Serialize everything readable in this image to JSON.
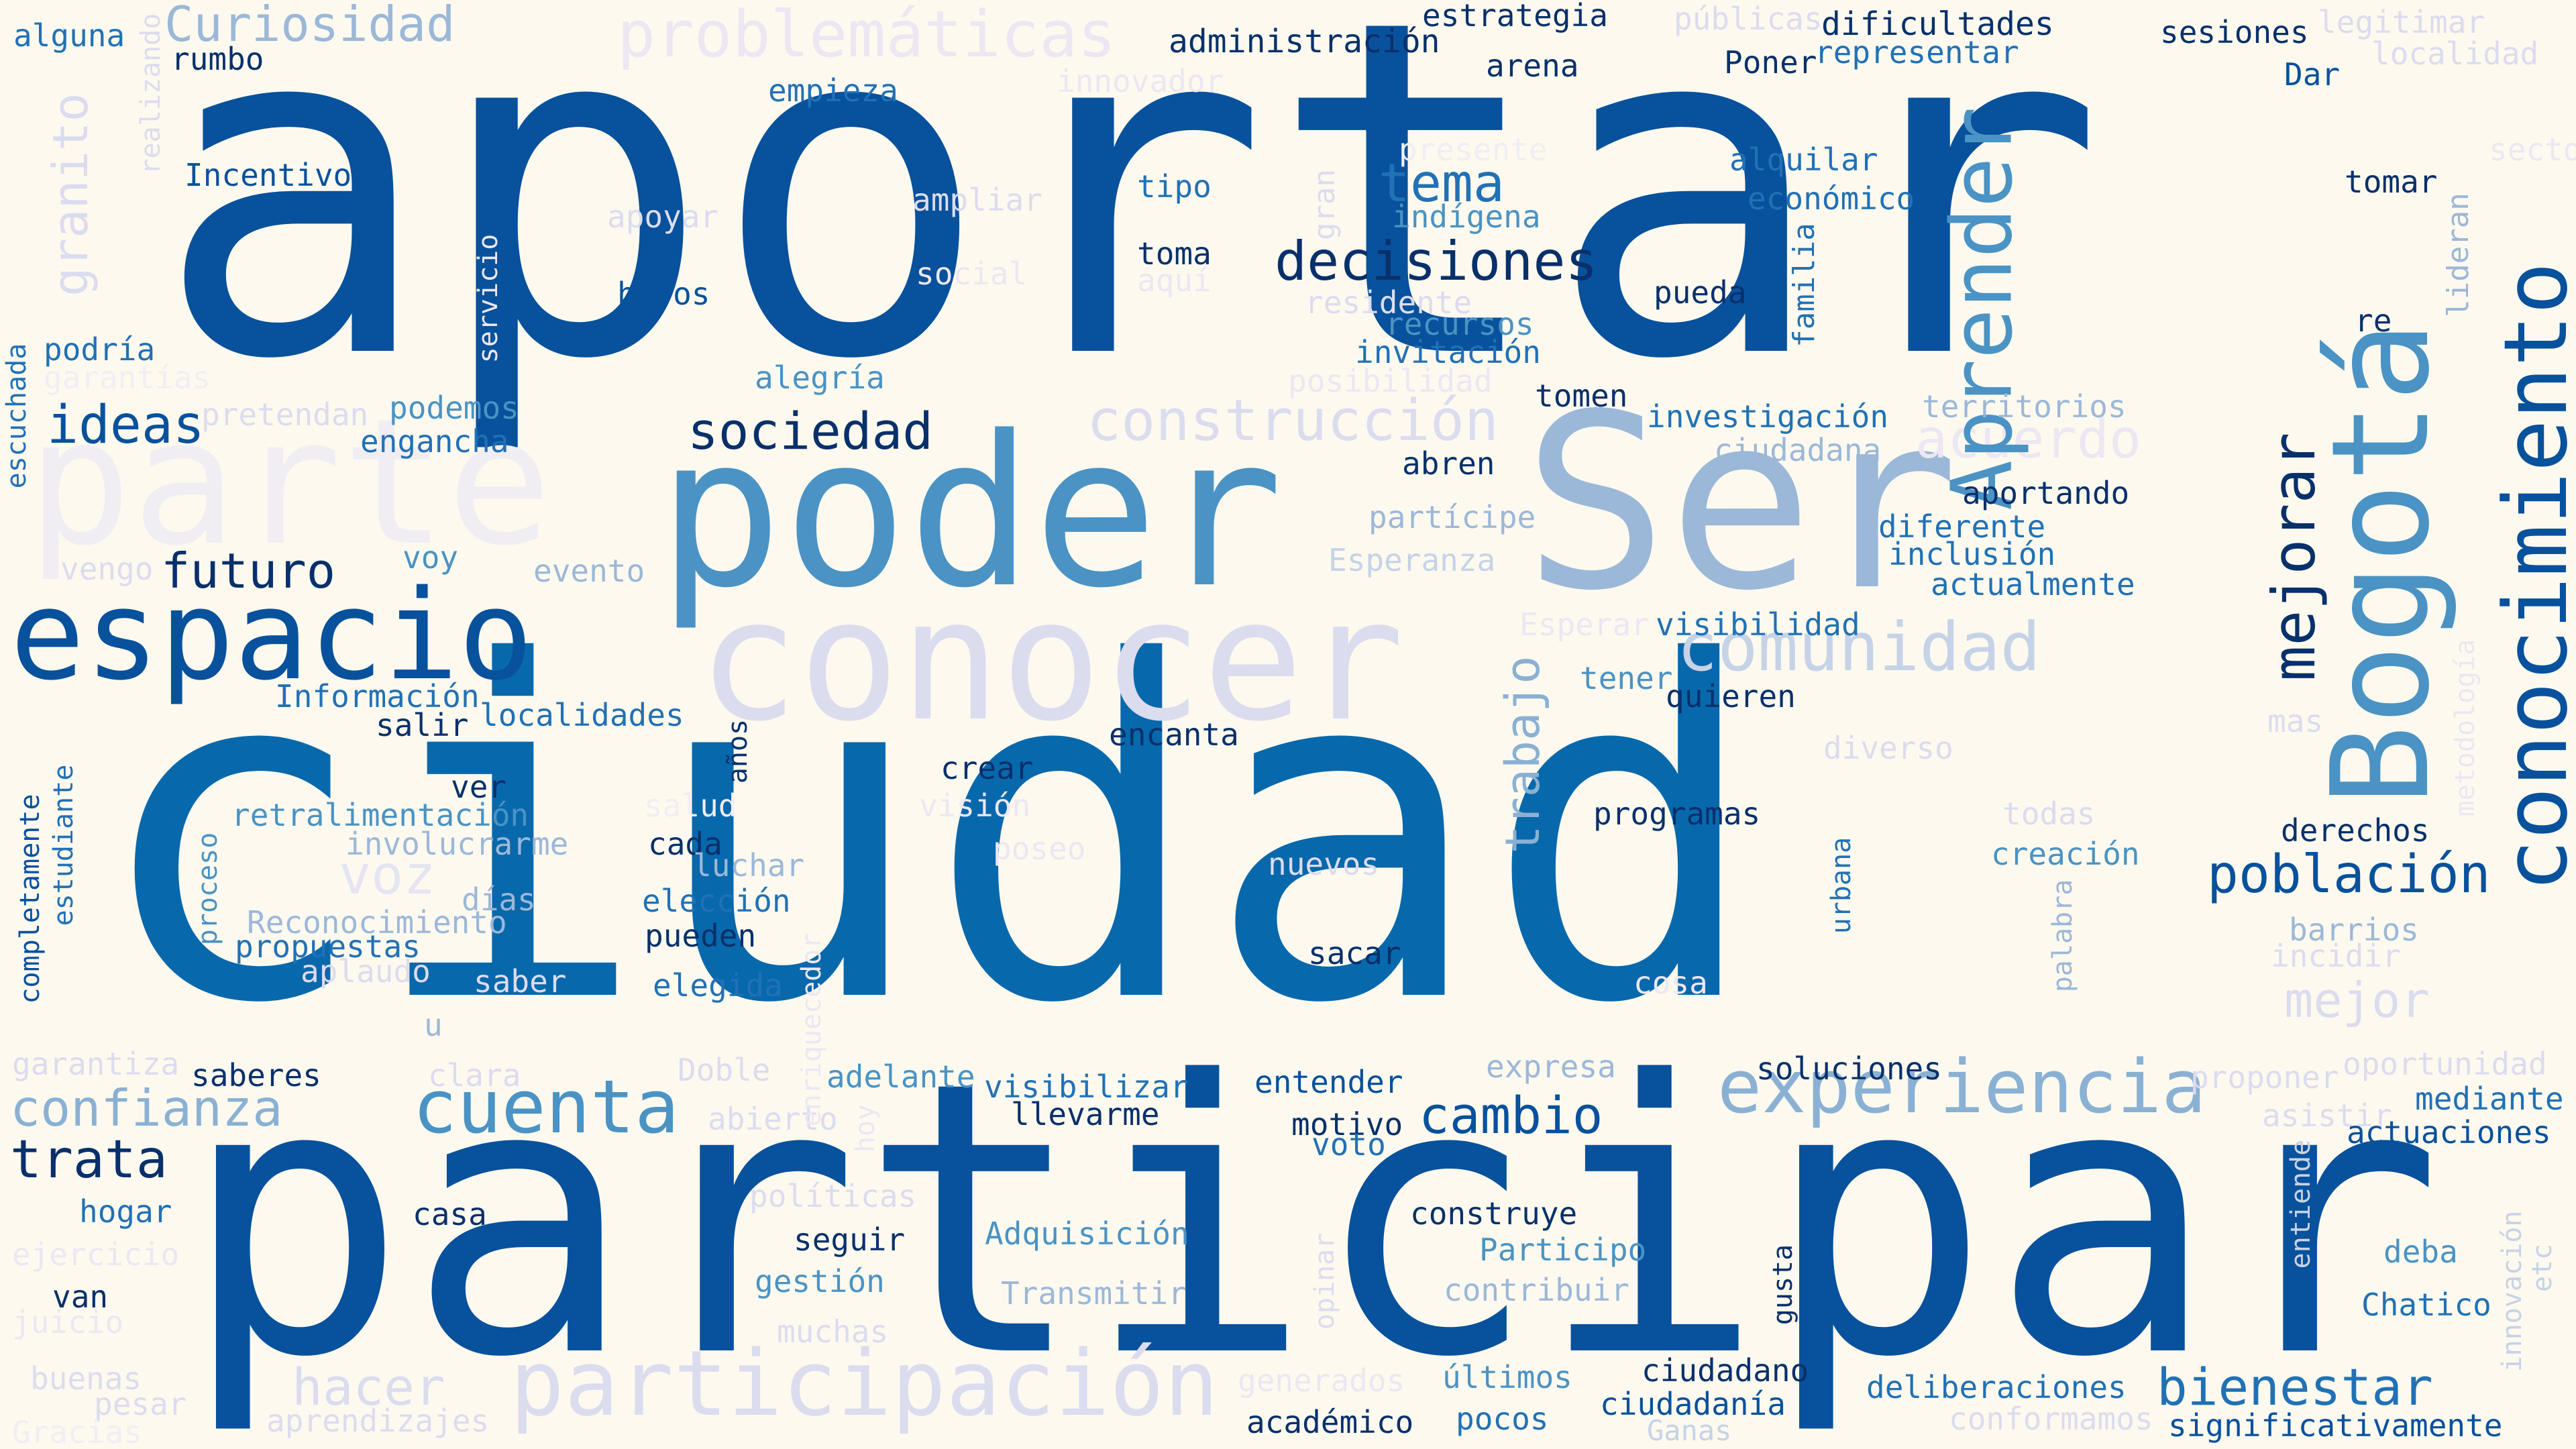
{
  "colors": {
    "background": "#fdf9ef",
    "c1": "#08306b",
    "c2": "#08519c",
    "c3": "#2171b5",
    "c4": "#4292c6",
    "c5": "#6baed6",
    "c6": "#9ecae1",
    "c7": "#c6dbef",
    "c8": "#dcdff0"
  },
  "words": [
    {
      "id": "w1",
      "text": "aportar",
      "color": "#08519c"
    },
    {
      "id": "w2",
      "text": "ciudad",
      "color": "#0868ac"
    },
    {
      "id": "w3",
      "text": "participar",
      "color": "#08519c"
    },
    {
      "id": "w4",
      "text": "poder",
      "color": "#4a93c4"
    },
    {
      "id": "w5",
      "text": "Ser",
      "color": "#9cb8d8"
    },
    {
      "id": "w6",
      "text": "conocer",
      "color": "#dcdcef"
    },
    {
      "id": "w7",
      "text": "espacio",
      "color": "#08519c"
    },
    {
      "id": "w8",
      "text": "parte",
      "color": "#f1eef3"
    },
    {
      "id": "w9",
      "text": "participación",
      "color": "#dcdcef"
    },
    {
      "id": "w10",
      "text": "experiencia",
      "color": "#8ab1d3"
    },
    {
      "id": "w11",
      "text": "cuenta",
      "color": "#4a93c4"
    },
    {
      "id": "w12",
      "text": "comunidad",
      "color": "#c6d3e7"
    },
    {
      "id": "w13",
      "text": "construcción",
      "color": "#dcdcef"
    },
    {
      "id": "w14",
      "text": "decisiones",
      "color": "#08306b"
    },
    {
      "id": "w15",
      "text": "sociedad",
      "color": "#08306b"
    },
    {
      "id": "w16",
      "text": "problemáticas",
      "color": "#ece7f2"
    },
    {
      "id": "w17",
      "text": "Curiosidad",
      "color": "#9cb8d8"
    },
    {
      "id": "w18",
      "text": "ideas",
      "color": "#08519c"
    },
    {
      "id": "w19",
      "text": "futuro",
      "color": "#08306b"
    },
    {
      "id": "w20",
      "text": "confianza",
      "color": "#8ab1d3"
    },
    {
      "id": "w21",
      "text": "trata",
      "color": "#08306b"
    },
    {
      "id": "w22",
      "text": "población",
      "color": "#08519c"
    },
    {
      "id": "w23",
      "text": "bienestar",
      "color": "#2171b5"
    },
    {
      "id": "w24",
      "text": "cambio",
      "color": "#08519c"
    },
    {
      "id": "w25",
      "text": "tema",
      "color": "#2171b5"
    },
    {
      "id": "w26",
      "text": "hacer",
      "color": "#dcdcef"
    },
    {
      "id": "w27",
      "text": "voz",
      "color": "#e5e5f2"
    },
    {
      "id": "w28",
      "text": "mejor",
      "color": "#dcdcef"
    },
    {
      "id": "w29",
      "text": "acuerdo",
      "color": "#ece7f2"
    },
    {
      "id": "w30",
      "text": "Aprender",
      "color": "#4a93c4"
    },
    {
      "id": "w31",
      "text": "Bogotá",
      "color": "#4a93c4"
    },
    {
      "id": "w32",
      "text": "conocimiento",
      "color": "#08519c"
    },
    {
      "id": "w33",
      "text": "mejorar",
      "color": "#08306b"
    },
    {
      "id": "w34",
      "text": "trabajo",
      "color": "#8ab1d3"
    },
    {
      "id": "w35",
      "text": "granito",
      "color": "#dcdcef"
    },
    {
      "id": "w36",
      "text": "administración",
      "color": "#08306b"
    },
    {
      "id": "w37",
      "text": "estrategia",
      "color": "#08306b"
    },
    {
      "id": "w38",
      "text": "públicas",
      "color": "#dcdcef"
    },
    {
      "id": "w39",
      "text": "dificultades",
      "color": "#08306b"
    },
    {
      "id": "w40",
      "text": "sesiones",
      "color": "#08306b"
    },
    {
      "id": "w41",
      "text": "legitimar",
      "color": "#dcdcef"
    },
    {
      "id": "w42",
      "text": "alguna",
      "color": "#2171b5"
    },
    {
      "id": "w43",
      "text": "realizando",
      "color": "#dcdcef"
    },
    {
      "id": "w44",
      "text": "rumbo",
      "color": "#08306b"
    },
    {
      "id": "w45",
      "text": "empieza",
      "color": "#2171b5"
    },
    {
      "id": "w46",
      "text": "innovador",
      "color": "#ece7f2"
    },
    {
      "id": "w47",
      "text": "arena",
      "color": "#08306b"
    },
    {
      "id": "w48",
      "text": "Poner",
      "color": "#08306b"
    },
    {
      "id": "w49",
      "text": "representar",
      "color": "#2171b5"
    },
    {
      "id": "w50",
      "text": "Dar",
      "color": "#08519c"
    },
    {
      "id": "w51",
      "text": "localidad",
      "color": "#dcdcef"
    },
    {
      "id": "w52",
      "text": "presente",
      "color": "#f1eef3"
    },
    {
      "id": "w53",
      "text": "sector",
      "color": "#ece7f2"
    },
    {
      "id": "w54",
      "text": "Incentivos",
      "color": "#08519c"
    },
    {
      "id": "w55",
      "text": "apoyar",
      "color": "#dcdcef"
    },
    {
      "id": "w56",
      "text": "ampliar",
      "color": "#dcdcef"
    },
    {
      "id": "w57",
      "text": "gran",
      "color": "#dcdcef"
    },
    {
      "id": "w58",
      "text": "tipo",
      "color": "#2171b5"
    },
    {
      "id": "w59",
      "text": "indígena",
      "color": "#4a93c4"
    },
    {
      "id": "w60",
      "text": "alquilar",
      "color": "#2171b5"
    },
    {
      "id": "w61",
      "text": "económico",
      "color": "#2171b5"
    },
    {
      "id": "w62",
      "text": "tomar",
      "color": "#08306b"
    },
    {
      "id": "w63",
      "text": "lideran",
      "color": "#9cb8d8"
    },
    {
      "id": "w64",
      "text": "servicio",
      "color": "#ece7f2"
    },
    {
      "id": "w65",
      "text": "hijos",
      "color": "#08519c"
    },
    {
      "id": "w66",
      "text": "social",
      "color": "#ece7f2"
    },
    {
      "id": "w67",
      "text": "toma",
      "color": "#08306b"
    },
    {
      "id": "w68",
      "text": "aquí",
      "color": "#ece7f2"
    },
    {
      "id": "w69",
      "text": "residente",
      "color": "#dcdcef"
    },
    {
      "id": "w70",
      "text": "pueda",
      "color": "#08306b"
    },
    {
      "id": "w71",
      "text": "familia",
      "color": "#2171b5"
    },
    {
      "id": "w72",
      "text": "re",
      "color": "#08306b"
    },
    {
      "id": "w73",
      "text": "escuchada",
      "color": "#2171b5"
    },
    {
      "id": "w74",
      "text": "podría",
      "color": "#2171b5"
    },
    {
      "id": "w75",
      "text": "garantías",
      "color": "#f1eef3"
    },
    {
      "id": "w76",
      "text": "recursos",
      "color": "#4a93c4"
    },
    {
      "id": "w77",
      "text": "invitación",
      "color": "#2171b5"
    },
    {
      "id": "w78",
      "text": "alegría",
      "color": "#4a93c4"
    },
    {
      "id": "w79",
      "text": "posibilidad",
      "color": "#ece7f2"
    },
    {
      "id": "w80",
      "text": "pretendan",
      "color": "#dcdcef"
    },
    {
      "id": "w81",
      "text": "podemos",
      "color": "#4a93c4"
    },
    {
      "id": "w82",
      "text": "engancha",
      "color": "#2171b5"
    },
    {
      "id": "w83",
      "text": "tomen",
      "color": "#08306b"
    },
    {
      "id": "w84",
      "text": "investigación",
      "color": "#2171b5"
    },
    {
      "id": "w85",
      "text": "territorios",
      "color": "#9cb8d8"
    },
    {
      "id": "w86",
      "text": "ciudadana",
      "color": "#9cb8d8"
    },
    {
      "id": "w87",
      "text": "abren",
      "color": "#08306b"
    },
    {
      "id": "w88",
      "text": "aportando",
      "color": "#08306b"
    },
    {
      "id": "w89",
      "text": "partícipe",
      "color": "#9cb8d8"
    },
    {
      "id": "w90",
      "text": "diferente",
      "color": "#2171b5"
    },
    {
      "id": "w91",
      "text": "inclusión",
      "color": "#2171b5"
    },
    {
      "id": "w92",
      "text": "vengo",
      "color": "#dcdcef"
    },
    {
      "id": "w93",
      "text": "voy",
      "color": "#4a93c4"
    },
    {
      "id": "w94",
      "text": "evento",
      "color": "#9cb8d8"
    },
    {
      "id": "w95",
      "text": "Esperanza",
      "color": "#c6d3e7"
    },
    {
      "id": "w96",
      "text": "actualmente",
      "color": "#2171b5"
    },
    {
      "id": "w97",
      "text": "Esperar",
      "color": "#ece7f2"
    },
    {
      "id": "w98",
      "text": "visibilidad",
      "color": "#2171b5"
    },
    {
      "id": "w99",
      "text": "metodología",
      "color": "#ece7f2"
    },
    {
      "id": "w100",
      "text": "Información",
      "color": "#2171b5"
    },
    {
      "id": "w101",
      "text": "salir",
      "color": "#08306b"
    },
    {
      "id": "w102",
      "text": "localidades",
      "color": "#2171b5"
    },
    {
      "id": "w103",
      "text": "años",
      "color": "#08306b"
    },
    {
      "id": "w104",
      "text": "encanta",
      "color": "#08306b"
    },
    {
      "id": "w105",
      "text": "tener",
      "color": "#4a93c4"
    },
    {
      "id": "w106",
      "text": "quieren",
      "color": "#08306b"
    },
    {
      "id": "w107",
      "text": "mas",
      "color": "#dcdcef"
    },
    {
      "id": "w108",
      "text": "diverso",
      "color": "#dcdcef"
    },
    {
      "id": "w109",
      "text": "completamente",
      "color": "#08519c"
    },
    {
      "id": "w110",
      "text": "estudiante",
      "color": "#2171b5"
    },
    {
      "id": "w111",
      "text": "ver",
      "color": "#08306b"
    },
    {
      "id": "w112",
      "text": "retralimentación",
      "color": "#4a93c4"
    },
    {
      "id": "w113",
      "text": "salud",
      "color": "#f1eef3"
    },
    {
      "id": "w114",
      "text": "crear",
      "color": "#08306b"
    },
    {
      "id": "w115",
      "text": "visión",
      "color": "#ece7f2"
    },
    {
      "id": "w116",
      "text": "programas",
      "color": "#08306b"
    },
    {
      "id": "w117",
      "text": "todas",
      "color": "#dcdcef"
    },
    {
      "id": "w118",
      "text": "derechos",
      "color": "#08306b"
    },
    {
      "id": "w119",
      "text": "involucrarme",
      "color": "#9cb8d8"
    },
    {
      "id": "w120",
      "text": "cada",
      "color": "#08306b"
    },
    {
      "id": "w121",
      "text": "luchar",
      "color": "#9cb8d8"
    },
    {
      "id": "w122",
      "text": "poseo",
      "color": "#ece7f2"
    },
    {
      "id": "w123",
      "text": "nuevos",
      "color": "#dcdcef"
    },
    {
      "id": "w124",
      "text": "creación",
      "color": "#4a93c4"
    },
    {
      "id": "w125",
      "text": "proceso",
      "color": "#4a93c4"
    },
    {
      "id": "w126",
      "text": "días",
      "color": "#9cb8d8"
    },
    {
      "id": "w127",
      "text": "elección",
      "color": "#2171b5"
    },
    {
      "id": "w128",
      "text": "urbana",
      "color": "#2171b5"
    },
    {
      "id": "w129",
      "text": "Reconocimiento",
      "color": "#9cb8d8"
    },
    {
      "id": "w130",
      "text": "pueden",
      "color": "#08306b"
    },
    {
      "id": "w131",
      "text": "propuestas",
      "color": "#2171b5"
    },
    {
      "id": "w132",
      "text": "barrios",
      "color": "#9cb8d8"
    },
    {
      "id": "w133",
      "text": "enriquecedor",
      "color": "#ece7f2"
    },
    {
      "id": "w134",
      "text": "palabra",
      "color": "#9cb8d8"
    },
    {
      "id": "w135",
      "text": "incidir",
      "color": "#dcdcef"
    },
    {
      "id": "w136",
      "text": "sacar",
      "color": "#08306b"
    },
    {
      "id": "w137",
      "text": "aplaudo",
      "color": "#dcdcef"
    },
    {
      "id": "w138",
      "text": "saber",
      "color": "#dcdcef"
    },
    {
      "id": "w139",
      "text": "elegida",
      "color": "#2171b5"
    },
    {
      "id": "w140",
      "text": "cosa",
      "color": "#ece7f2"
    },
    {
      "id": "w141",
      "text": "u",
      "color": "#9cb8d8"
    },
    {
      "id": "w142",
      "text": "garantiza",
      "color": "#dcdcef"
    },
    {
      "id": "w143",
      "text": "expresa",
      "color": "#9cb8d8"
    },
    {
      "id": "w144",
      "text": "soluciones",
      "color": "#08306b"
    },
    {
      "id": "w145",
      "text": "oportunidad",
      "color": "#dcdcef"
    },
    {
      "id": "w146",
      "text": "saberes",
      "color": "#08306b"
    },
    {
      "id": "w147",
      "text": "clara",
      "color": "#dcdcef"
    },
    {
      "id": "w148",
      "text": "Doble",
      "color": "#dcdcef"
    },
    {
      "id": "w149",
      "text": "adelante",
      "color": "#4a93c4"
    },
    {
      "id": "w150",
      "text": "visibilizar",
      "color": "#2171b5"
    },
    {
      "id": "w151",
      "text": "entender",
      "color": "#08519c"
    },
    {
      "id": "w152",
      "text": "proponer",
      "color": "#dcdcef"
    },
    {
      "id": "w153",
      "text": "mediante",
      "color": "#2171b5"
    },
    {
      "id": "w154",
      "text": "abierto",
      "color": "#dcdcef"
    },
    {
      "id": "w155",
      "text": "hoy",
      "color": "#ece7f2"
    },
    {
      "id": "w156",
      "text": "llevarme",
      "color": "#08306b"
    },
    {
      "id": "w157",
      "text": "motivo",
      "color": "#08306b"
    },
    {
      "id": "w158",
      "text": "voto",
      "color": "#2171b5"
    },
    {
      "id": "w159",
      "text": "asistir",
      "color": "#dcdcef"
    },
    {
      "id": "w160",
      "text": "actuaciones",
      "color": "#08519c"
    },
    {
      "id": "w161",
      "text": "entiende",
      "color": "#c6d3e7"
    },
    {
      "id": "w162",
      "text": "hogar",
      "color": "#2171b5"
    },
    {
      "id": "w163",
      "text": "casa",
      "color": "#08306b"
    },
    {
      "id": "w164",
      "text": "políticas",
      "color": "#dcdcef"
    },
    {
      "id": "w165",
      "text": "construye",
      "color": "#08306b"
    },
    {
      "id": "w166",
      "text": "innovación",
      "color": "#c6d3e7"
    },
    {
      "id": "w167",
      "text": "ejercicio",
      "color": "#ece7f2"
    },
    {
      "id": "w168",
      "text": "seguir",
      "color": "#08306b"
    },
    {
      "id": "w169",
      "text": "Adquisición",
      "color": "#4a93c4"
    },
    {
      "id": "w170",
      "text": "Participo",
      "color": "#4a93c4"
    },
    {
      "id": "w171",
      "text": "deba",
      "color": "#4a93c4"
    },
    {
      "id": "w172",
      "text": "etc",
      "color": "#c6d3e7"
    },
    {
      "id": "w173",
      "text": "gestión",
      "color": "#4a93c4"
    },
    {
      "id": "w174",
      "text": "opinar",
      "color": "#dcdcef"
    },
    {
      "id": "w175",
      "text": "gusta",
      "color": "#08306b"
    },
    {
      "id": "w176",
      "text": "van",
      "color": "#08306b"
    },
    {
      "id": "w177",
      "text": "Transmitir",
      "color": "#9cb8d8"
    },
    {
      "id": "w178",
      "text": "contribuir",
      "color": "#9cb8d8"
    },
    {
      "id": "w179",
      "text": "Chatico",
      "color": "#2171b5"
    },
    {
      "id": "w180",
      "text": "juicio",
      "color": "#ece7f2"
    },
    {
      "id": "w181",
      "text": "muchas",
      "color": "#dcdcef"
    },
    {
      "id": "w182",
      "text": "buenas",
      "color": "#dcdcef"
    },
    {
      "id": "w183",
      "text": "generados",
      "color": "#ece7f2"
    },
    {
      "id": "w184",
      "text": "últimos",
      "color": "#4a93c4"
    },
    {
      "id": "w185",
      "text": "ciudadano",
      "color": "#08306b"
    },
    {
      "id": "w186",
      "text": "deliberaciones",
      "color": "#2171b5"
    },
    {
      "id": "w187",
      "text": "pesar",
      "color": "#dcdcef"
    },
    {
      "id": "w188",
      "text": "aprendizajes",
      "color": "#dcdcef"
    },
    {
      "id": "w189",
      "text": "académico",
      "color": "#08306b"
    },
    {
      "id": "w190",
      "text": "pocos",
      "color": "#2171b5"
    },
    {
      "id": "w191",
      "text": "ciudadanía",
      "color": "#08519c"
    },
    {
      "id": "w192",
      "text": "conformamos",
      "color": "#dcdcef"
    },
    {
      "id": "w193",
      "text": "significativamente",
      "color": "#08519c"
    },
    {
      "id": "w194",
      "text": "Gracias",
      "color": "#f1eef3"
    },
    {
      "id": "w195",
      "text": "Ganas",
      "color": "#c6d3e7"
    }
  ]
}
